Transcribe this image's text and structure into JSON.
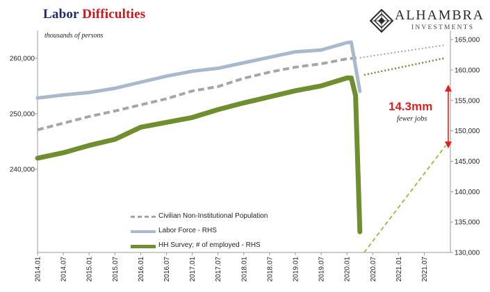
{
  "title": {
    "part1": "Labor",
    "part2": "Difficulties"
  },
  "units_label": "thousands of persons",
  "logo": {
    "name": "ALHAMBRA",
    "sub": "INVESTMENTS",
    "icon": "alhambra-diamond-icon"
  },
  "annotation": {
    "value": "14.3mm",
    "text": "fewer jobs"
  },
  "colors": {
    "population": "#a6a6a6",
    "labor_force": "#a9b9cd",
    "employed": "#6f8f2f",
    "arrow": "#e0211e"
  },
  "chart_data": {
    "type": "line",
    "x_ticks": [
      "2014.01",
      "2014.07",
      "2015.01",
      "2015.07",
      "2016.01",
      "2016.07",
      "2017.01",
      "2017.07",
      "2018.01",
      "2018.07",
      "2019.01",
      "2019.07",
      "2020.01",
      "2020.07",
      "2021.01",
      "2021.07"
    ],
    "left_axis": {
      "ticks": [
        240000,
        250000,
        260000
      ],
      "range": [
        225000,
        265000
      ]
    },
    "right_axis": {
      "ticks": [
        130000,
        135000,
        140000,
        145000,
        150000,
        155000,
        160000,
        165000
      ],
      "range": [
        130000,
        166500
      ]
    },
    "series": [
      {
        "name": "Civilian Non-Institutional Population",
        "axis": "left",
        "style": "dashed",
        "points": [
          [
            "2014.01",
            247100
          ],
          [
            "2014.07",
            248300
          ],
          [
            "2015.01",
            249500
          ],
          [
            "2015.07",
            250500
          ],
          [
            "2016.01",
            251600
          ],
          [
            "2016.07",
            252700
          ],
          [
            "2017.01",
            254100
          ],
          [
            "2017.07",
            254900
          ],
          [
            "2018.01",
            256400
          ],
          [
            "2018.07",
            257500
          ],
          [
            "2019.01",
            258400
          ],
          [
            "2019.07",
            259000
          ],
          [
            "2020.01",
            259900
          ],
          [
            "2020.04",
            260100
          ]
        ]
      },
      {
        "name": "Labor Force - RHS",
        "axis": "right",
        "style": "solid",
        "points": [
          [
            "2014.01",
            155400
          ],
          [
            "2014.07",
            155900
          ],
          [
            "2015.01",
            156300
          ],
          [
            "2015.07",
            157000
          ],
          [
            "2016.01",
            158000
          ],
          [
            "2016.07",
            159000
          ],
          [
            "2017.01",
            159800
          ],
          [
            "2017.07",
            160300
          ],
          [
            "2018.01",
            161200
          ],
          [
            "2018.07",
            162100
          ],
          [
            "2019.01",
            163000
          ],
          [
            "2019.07",
            163300
          ],
          [
            "2020.01",
            164500
          ],
          [
            "2020.02",
            164600
          ],
          [
            "2020.04",
            156500
          ]
        ]
      },
      {
        "name": "HH Survey; # of employed - RHS",
        "axis": "right",
        "style": "solid",
        "points": [
          [
            "2014.01",
            145500
          ],
          [
            "2014.07",
            146400
          ],
          [
            "2015.01",
            147600
          ],
          [
            "2015.07",
            148600
          ],
          [
            "2016.01",
            150600
          ],
          [
            "2016.07",
            151400
          ],
          [
            "2017.01",
            152200
          ],
          [
            "2017.07",
            153500
          ],
          [
            "2018.01",
            154600
          ],
          [
            "2018.07",
            155600
          ],
          [
            "2019.01",
            156600
          ],
          [
            "2019.07",
            157400
          ],
          [
            "2020.01",
            158700
          ],
          [
            "2020.02",
            158700
          ],
          [
            "2020.03",
            155800
          ],
          [
            "2020.04",
            133400
          ]
        ]
      },
      {
        "name": "Population trend (projection)",
        "axis": "left",
        "style": "dotted",
        "in_legend": false,
        "points": [
          [
            "2020.04",
            260100
          ],
          [
            "2021.12",
            262400
          ]
        ]
      },
      {
        "name": "Employment trend (projection)",
        "axis": "right",
        "style": "dotted",
        "in_legend": false,
        "points": [
          [
            "2020.05",
            159200
          ],
          [
            "2021.12",
            162000
          ]
        ]
      },
      {
        "name": "Employment recovery path",
        "axis": "right",
        "style": "dashed-light",
        "in_legend": false,
        "points": [
          [
            "2020.05",
            130000
          ],
          [
            "2021.12",
            147600
          ]
        ]
      }
    ],
    "legend": [
      "Civilian Non-Institutional Population",
      "Labor Force - RHS",
      "HH Survey; # of employed - RHS"
    ],
    "legend_position": "lower-left"
  }
}
